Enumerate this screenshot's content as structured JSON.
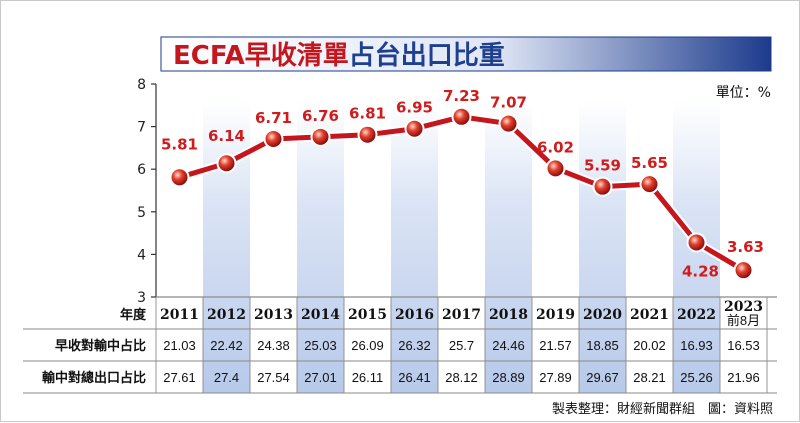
{
  "title": {
    "part1": "ECFA早收清單",
    "part2": "占台出口比重"
  },
  "unit_label": "單位：%",
  "credit": "製表整理：財經新聞群組　圖：資料照",
  "colors": {
    "line": "#c4161c",
    "label": "#d01c1c",
    "band": "#c7d5ef",
    "title_main": "#c4161c",
    "title_sub": "#1f3f8f"
  },
  "chart_data": {
    "type": "line",
    "categories": [
      "2011",
      "2012",
      "2013",
      "2014",
      "2015",
      "2016",
      "2017",
      "2018",
      "2019",
      "2020",
      "2021",
      "2022",
      "2023"
    ],
    "category_note_last": "前8月",
    "values": [
      5.81,
      6.14,
      6.71,
      6.76,
      6.81,
      6.95,
      7.23,
      7.07,
      6.02,
      5.59,
      5.65,
      4.28,
      3.63
    ],
    "value_labels": [
      "5.81",
      "6.14",
      "6.71",
      "6.76",
      "6.81",
      "6.95",
      "7.23",
      "7.07",
      "6.02",
      "5.59",
      "5.65",
      "4.28",
      "3.63"
    ],
    "ylim": [
      3,
      8
    ],
    "yticks": [
      "3",
      "4",
      "5",
      "6",
      "7",
      "8"
    ],
    "shaded_columns": [
      1,
      3,
      5,
      7,
      9,
      11
    ],
    "grid": false
  },
  "table": {
    "header_label": "年度",
    "rows": [
      {
        "label": "早收對輸中占比",
        "values": [
          "21.03",
          "22.42",
          "24.38",
          "25.03",
          "26.09",
          "26.32",
          "25.7",
          "24.46",
          "21.57",
          "18.85",
          "20.02",
          "16.93",
          "16.53"
        ]
      },
      {
        "label": "輸中對總出口占比",
        "values": [
          "27.61",
          "27.4",
          "27.54",
          "27.01",
          "26.11",
          "26.41",
          "28.12",
          "28.89",
          "27.89",
          "29.67",
          "28.21",
          "25.26",
          "21.96"
        ]
      }
    ]
  }
}
